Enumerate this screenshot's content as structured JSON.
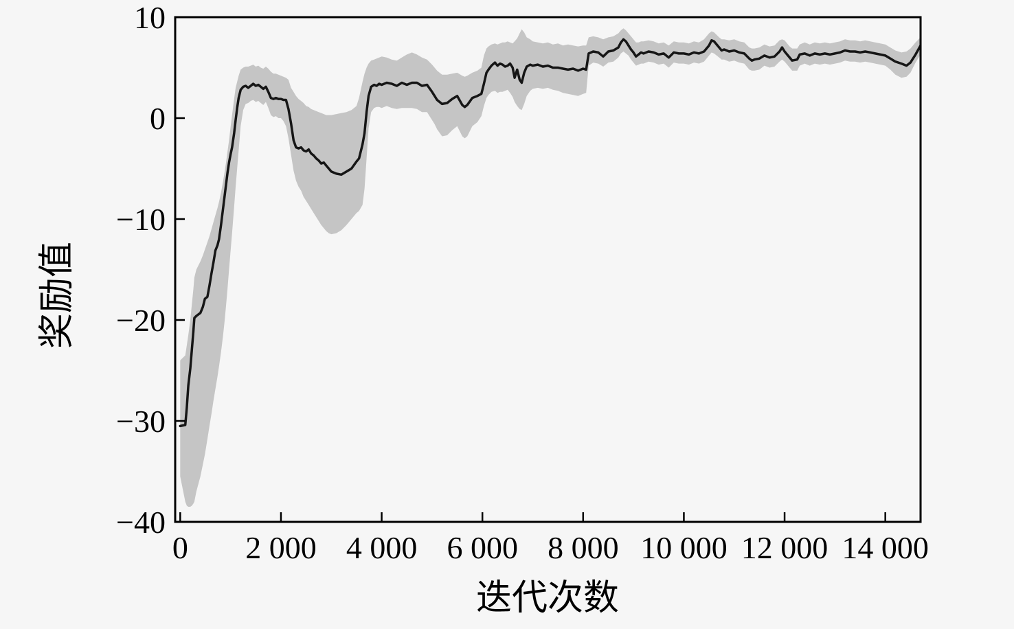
{
  "figure": {
    "background": "#f6f6f6",
    "frame_color": "#000000",
    "text_color": "#000000"
  },
  "chart_data": {
    "type": "line",
    "title": "",
    "xlabel": "迭代次数",
    "ylabel": "奖励值",
    "xlim": [
      -100,
      14700
    ],
    "ylim": [
      -40,
      10
    ],
    "grid": false,
    "legend": null,
    "x_ticks": [
      {
        "v": 0,
        "label": "0"
      },
      {
        "v": 2000,
        "label": "2 000"
      },
      {
        "v": 4000,
        "label": "4 000"
      },
      {
        "v": 6000,
        "label": "6 000"
      },
      {
        "v": 8000,
        "label": "8 000"
      },
      {
        "v": 10000,
        "label": "10 000"
      },
      {
        "v": 12000,
        "label": "12 000"
      },
      {
        "v": 14000,
        "label": "14 000"
      }
    ],
    "y_ticks": [
      {
        "v": 10,
        "label": "10"
      },
      {
        "v": 0,
        "label": "0"
      },
      {
        "v": -10,
        "label": "−10"
      },
      {
        "v": -20,
        "label": "−20"
      },
      {
        "v": -30,
        "label": "−30"
      },
      {
        "v": -40,
        "label": "−40"
      }
    ],
    "series": [
      {
        "name": "mean_reward",
        "type": "line",
        "color": "#161616",
        "width": 3.5
      },
      {
        "name": "reward_band",
        "type": "band",
        "color": "#c5c5c5"
      }
    ],
    "points": {
      "columns": [
        "iteration",
        "mean",
        "lower",
        "upper"
      ],
      "rows": [
        [
          0,
          -30.5,
          -35.5,
          -24
        ],
        [
          100,
          -30.4,
          -38,
          -23.5
        ],
        [
          130,
          -28.7,
          -38.4,
          -22.5
        ],
        [
          160,
          -26.5,
          -38.5,
          -21.5
        ],
        [
          200,
          -24.8,
          -38.5,
          -20
        ],
        [
          230,
          -23,
          -38.4,
          -18.5
        ],
        [
          260,
          -21.2,
          -38.2,
          -17
        ],
        [
          280,
          -19.8,
          -38,
          -15.8
        ],
        [
          320,
          -19.6,
          -37,
          -15
        ],
        [
          400,
          -19.3,
          -35.5,
          -14.2
        ],
        [
          450,
          -18.7,
          -34.3,
          -13.6
        ],
        [
          490,
          -17.9,
          -33.3,
          -13
        ],
        [
          540,
          -17.7,
          -31.8,
          -12.3
        ],
        [
          580,
          -16.6,
          -30.5,
          -11.7
        ],
        [
          620,
          -15.4,
          -29.3,
          -11
        ],
        [
          660,
          -14.3,
          -28,
          -10.3
        ],
        [
          700,
          -13.1,
          -26.8,
          -9.6
        ],
        [
          740,
          -12.6,
          -25.6,
          -8.9
        ],
        [
          770,
          -12,
          -24.6,
          -8.3
        ],
        [
          810,
          -10.6,
          -23.2,
          -7.4
        ],
        [
          850,
          -9,
          -21.6,
          -6.3
        ],
        [
          880,
          -7.8,
          -20.2,
          -5.4
        ],
        [
          910,
          -6.6,
          -18.6,
          -4.4
        ],
        [
          940,
          -5.4,
          -16.9,
          -3.3
        ],
        [
          970,
          -4.4,
          -15,
          -2.2
        ],
        [
          1000,
          -3.6,
          -13.2,
          -0.9
        ],
        [
          1030,
          -2.9,
          -11.4,
          0.3
        ],
        [
          1070,
          -1.5,
          -8.8,
          1.9
        ],
        [
          1100,
          -0.2,
          -6.8,
          3
        ],
        [
          1130,
          1,
          -5,
          3.6
        ],
        [
          1160,
          2,
          -3.2,
          4.2
        ],
        [
          1200,
          2.8,
          -0.8,
          4.8
        ],
        [
          1250,
          3.1,
          0.8,
          5
        ],
        [
          1300,
          3.2,
          1.4,
          5.1
        ],
        [
          1350,
          3,
          1.5,
          5.1
        ],
        [
          1400,
          3.2,
          1.7,
          5.2
        ],
        [
          1450,
          3.4,
          1.8,
          5.3
        ],
        [
          1500,
          3.2,
          1.6,
          5.1
        ],
        [
          1550,
          3.3,
          1.7,
          5.2
        ],
        [
          1600,
          3.1,
          1.5,
          5
        ],
        [
          1650,
          2.9,
          1.3,
          4.9
        ],
        [
          1700,
          3.1,
          1.6,
          5.1
        ],
        [
          1750,
          2.6,
          1,
          4.9
        ],
        [
          1800,
          2,
          0.3,
          4.6
        ],
        [
          1850,
          1.9,
          0.1,
          4.4
        ],
        [
          1900,
          2,
          0.2,
          4.4
        ],
        [
          1950,
          1.9,
          0,
          4.3
        ],
        [
          2000,
          1.9,
          0,
          4.2
        ],
        [
          2050,
          1.8,
          -0.3,
          4.1
        ],
        [
          2100,
          1.8,
          -0.8,
          4
        ],
        [
          2150,
          0.9,
          -2,
          3.8
        ],
        [
          2200,
          -0.5,
          -3.6,
          3
        ],
        [
          2250,
          -2.2,
          -5.2,
          2.6
        ],
        [
          2300,
          -2.9,
          -6.2,
          2.2
        ],
        [
          2350,
          -3,
          -6.8,
          1.9
        ],
        [
          2400,
          -2.9,
          -7.2,
          1.7
        ],
        [
          2450,
          -3.2,
          -7.8,
          1.5
        ],
        [
          2500,
          -3.3,
          -8.2,
          1.2
        ],
        [
          2550,
          -3.1,
          -8.6,
          1.1
        ],
        [
          2600,
          -3.5,
          -9,
          0.9
        ],
        [
          2650,
          -3.7,
          -9.4,
          0.8
        ],
        [
          2700,
          -4,
          -9.8,
          0.7
        ],
        [
          2750,
          -4.2,
          -10.2,
          0.6
        ],
        [
          2800,
          -4.5,
          -10.6,
          0.5
        ],
        [
          2850,
          -4.4,
          -10.9,
          0.4
        ],
        [
          2900,
          -4.7,
          -11.2,
          0.3
        ],
        [
          2950,
          -5,
          -11.4,
          0.3
        ],
        [
          3000,
          -5.3,
          -11.5,
          0.3
        ],
        [
          3100,
          -5.5,
          -11.4,
          0.4
        ],
        [
          3200,
          -5.6,
          -11.1,
          0.5
        ],
        [
          3300,
          -5.3,
          -10.6,
          0.6
        ],
        [
          3400,
          -5,
          -10,
          0.8
        ],
        [
          3500,
          -4.3,
          -9.4,
          1.2
        ],
        [
          3550,
          -4,
          -9.2,
          2
        ],
        [
          3620,
          -2.6,
          -8.6,
          3.6
        ],
        [
          3660,
          -1.5,
          -7,
          4.4
        ],
        [
          3700,
          0.6,
          -4,
          5
        ],
        [
          3740,
          2.2,
          -1,
          5.4
        ],
        [
          3790,
          3.1,
          0.6,
          5.7
        ],
        [
          3850,
          3.3,
          1,
          5.8
        ],
        [
          3900,
          3.2,
          1.1,
          5.9
        ],
        [
          3950,
          3.4,
          1.1,
          6
        ],
        [
          4000,
          3.3,
          1,
          6.1
        ],
        [
          4100,
          3.5,
          1.2,
          6
        ],
        [
          4200,
          3.4,
          1,
          5.8
        ],
        [
          4300,
          3.2,
          0.9,
          5.7
        ],
        [
          4400,
          3.5,
          1,
          6
        ],
        [
          4500,
          3.3,
          1,
          6.3
        ],
        [
          4600,
          3.5,
          1,
          6.5
        ],
        [
          4700,
          3.5,
          0.9,
          6.3
        ],
        [
          4800,
          3.2,
          0.6,
          6
        ],
        [
          4900,
          3.3,
          0.6,
          5.8
        ],
        [
          5000,
          2.6,
          -0.2,
          5.3
        ],
        [
          5050,
          2.2,
          -0.6,
          5
        ],
        [
          5100,
          1.8,
          -1.1,
          4.7
        ],
        [
          5200,
          1.4,
          -1.8,
          4.3
        ],
        [
          5300,
          1.5,
          -1.7,
          4.3
        ],
        [
          5400,
          1.9,
          -1.2,
          4.4
        ],
        [
          5500,
          2.2,
          -0.8,
          4.5
        ],
        [
          5600,
          1.3,
          -1.8,
          4.2
        ],
        [
          5650,
          1.1,
          -2,
          4.1
        ],
        [
          5700,
          1.3,
          -1.8,
          4.2
        ],
        [
          5800,
          2,
          -0.8,
          4.5
        ],
        [
          5900,
          2.2,
          -0.4,
          4.7
        ],
        [
          5980,
          2.4,
          0.2,
          5
        ],
        [
          6030,
          3.4,
          1.2,
          6.2
        ],
        [
          6080,
          4.5,
          2,
          6.9
        ],
        [
          6120,
          4.8,
          2.3,
          7.1
        ],
        [
          6180,
          5.2,
          2.6,
          7.3
        ],
        [
          6250,
          5.5,
          2.7,
          7.4
        ],
        [
          6300,
          5.2,
          2.5,
          7.3
        ],
        [
          6350,
          5.4,
          2.6,
          7.4
        ],
        [
          6400,
          5.3,
          2.6,
          7.5
        ],
        [
          6450,
          5.1,
          2.7,
          7.5
        ],
        [
          6500,
          5.2,
          2.8,
          7.6
        ],
        [
          6550,
          5.4,
          2.5,
          7.5
        ],
        [
          6600,
          5,
          2.1,
          7.4
        ],
        [
          6640,
          4,
          1.6,
          7.6
        ],
        [
          6690,
          4.8,
          1.2,
          7.9
        ],
        [
          6740,
          3.8,
          0.9,
          8.4
        ],
        [
          6780,
          3.5,
          0.8,
          8.8
        ],
        [
          6830,
          4.5,
          1.4,
          8.5
        ],
        [
          6880,
          5.1,
          2.2,
          8
        ],
        [
          6950,
          5.3,
          2.7,
          7.8
        ],
        [
          7000,
          5.2,
          2.9,
          7.6
        ],
        [
          7100,
          5.3,
          3,
          7.5
        ],
        [
          7200,
          5.1,
          2.9,
          7.4
        ],
        [
          7300,
          5.2,
          3,
          7.5
        ],
        [
          7400,
          5,
          2.8,
          7.3
        ],
        [
          7500,
          5,
          2.7,
          7.4
        ],
        [
          7600,
          4.9,
          2.5,
          7.2
        ],
        [
          7700,
          4.8,
          2.4,
          7.3
        ],
        [
          7800,
          4.9,
          2.3,
          7.2
        ],
        [
          7900,
          4.7,
          2.2,
          7.1
        ],
        [
          8000,
          4.9,
          2.4,
          7.2
        ],
        [
          8060,
          4.8,
          2.5,
          7.2
        ],
        [
          8110,
          6.4,
          5.2,
          8
        ],
        [
          8200,
          6.6,
          5.5,
          8.1
        ],
        [
          8300,
          6.5,
          5.4,
          8
        ],
        [
          8400,
          6.1,
          5.1,
          7.8
        ],
        [
          8500,
          6.6,
          5.5,
          8
        ],
        [
          8600,
          6.7,
          5.6,
          8.1
        ],
        [
          8700,
          7,
          6,
          8.4
        ],
        [
          8750,
          7.5,
          6.4,
          8.7
        ],
        [
          8800,
          7.8,
          6.6,
          8.9
        ],
        [
          8850,
          7.6,
          6.4,
          8.7
        ],
        [
          8900,
          7.2,
          6.2,
          8.4
        ],
        [
          8950,
          6.8,
          5.8,
          8.1
        ],
        [
          9000,
          6.5,
          5.5,
          7.8
        ],
        [
          9050,
          6.1,
          5.2,
          7.5
        ],
        [
          9100,
          6.3,
          5.3,
          7.5
        ],
        [
          9150,
          6.5,
          5.4,
          7.6
        ],
        [
          9200,
          6.4,
          5.4,
          7.6
        ],
        [
          9300,
          6.6,
          5.6,
          7.7
        ],
        [
          9400,
          6.5,
          5.5,
          7.6
        ],
        [
          9500,
          6.3,
          5.3,
          7.4
        ],
        [
          9600,
          6.4,
          5.4,
          7.5
        ],
        [
          9700,
          6,
          5,
          7.2
        ],
        [
          9800,
          6.5,
          5.5,
          7.6
        ],
        [
          9900,
          6.4,
          5.4,
          7.5
        ],
        [
          10000,
          6.4,
          5.4,
          7.5
        ],
        [
          10100,
          6.3,
          5.3,
          7.4
        ],
        [
          10200,
          6.5,
          5.5,
          7.6
        ],
        [
          10300,
          6.4,
          5.4,
          7.5
        ],
        [
          10400,
          6.6,
          5.6,
          7.8
        ],
        [
          10500,
          7.2,
          6.2,
          8.4
        ],
        [
          10550,
          7.7,
          6.5,
          8.6
        ],
        [
          10600,
          7.6,
          6.4,
          8.5
        ],
        [
          10700,
          7,
          6,
          8
        ],
        [
          10750,
          6.7,
          5.8,
          7.8
        ],
        [
          10800,
          6.8,
          5.8,
          7.8
        ],
        [
          10900,
          6.6,
          5.6,
          7.7
        ],
        [
          11000,
          6.7,
          5.7,
          7.8
        ],
        [
          11100,
          6.5,
          5.5,
          7.6
        ],
        [
          11200,
          6.4,
          5.4,
          7.5
        ],
        [
          11300,
          5.9,
          4.8,
          7
        ],
        [
          11350,
          5.7,
          4.7,
          6.9
        ],
        [
          11400,
          5.8,
          4.7,
          6.9
        ],
        [
          11500,
          5.9,
          4.8,
          7
        ],
        [
          11600,
          6.2,
          5.2,
          7.3
        ],
        [
          11700,
          6,
          5,
          7.1
        ],
        [
          11800,
          6.1,
          5.1,
          7.2
        ],
        [
          11900,
          6.6,
          5.6,
          7.7
        ],
        [
          11950,
          7,
          5.8,
          7.8
        ],
        [
          12000,
          6.6,
          5.6,
          7.7
        ],
        [
          12100,
          6,
          5,
          7.1
        ],
        [
          12150,
          5.7,
          4.7,
          6.9
        ],
        [
          12250,
          5.8,
          4.7,
          6.9
        ],
        [
          12300,
          6.3,
          5.2,
          7.3
        ],
        [
          12400,
          6.4,
          5.4,
          7.5
        ],
        [
          12500,
          6.2,
          5.2,
          7.3
        ],
        [
          12600,
          6.4,
          5.4,
          7.5
        ],
        [
          12700,
          6.3,
          5.3,
          7.4
        ],
        [
          12800,
          6.4,
          5.4,
          7.5
        ],
        [
          12900,
          6.3,
          5.3,
          7.4
        ],
        [
          13000,
          6.4,
          5.4,
          7.5
        ],
        [
          13100,
          6.5,
          5.5,
          7.6
        ],
        [
          13200,
          6.7,
          5.7,
          7.8
        ],
        [
          13300,
          6.6,
          5.6,
          7.7
        ],
        [
          13400,
          6.6,
          5.6,
          7.7
        ],
        [
          13500,
          6.5,
          5.5,
          7.6
        ],
        [
          13600,
          6.6,
          5.6,
          7.7
        ],
        [
          13700,
          6.5,
          5.5,
          7.6
        ],
        [
          13800,
          6.4,
          5.4,
          7.5
        ],
        [
          13900,
          6.3,
          5.3,
          7.4
        ],
        [
          14000,
          6.2,
          5.2,
          7.3
        ],
        [
          14100,
          5.9,
          4.8,
          7
        ],
        [
          14200,
          5.6,
          4.3,
          6.7
        ],
        [
          14320,
          5.4,
          4,
          6.5
        ],
        [
          14420,
          5.2,
          4.1,
          6.6
        ],
        [
          14500,
          5.5,
          4.5,
          6.9
        ],
        [
          14600,
          6.3,
          5.5,
          7.5
        ],
        [
          14700,
          7.2,
          6.3,
          8
        ]
      ]
    }
  }
}
